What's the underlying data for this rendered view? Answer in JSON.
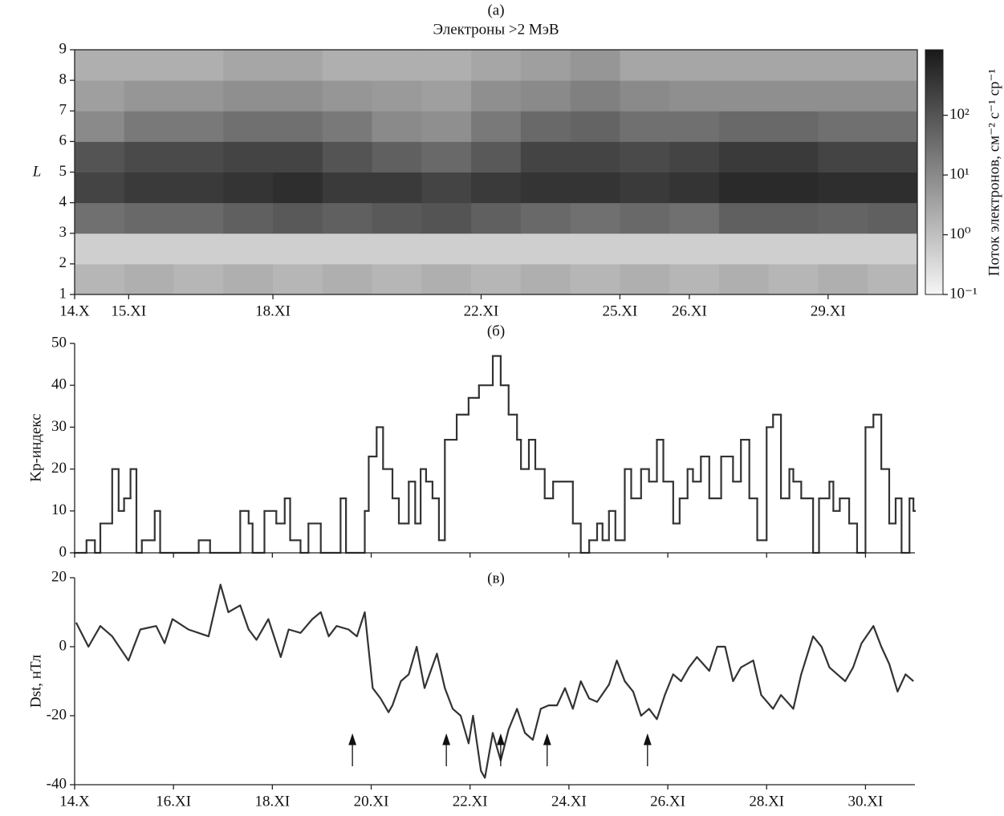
{
  "chart_data": [
    {
      "type": "heatmap",
      "label": "(а)",
      "title": "Электроны >2 МэВ",
      "ylabel": "L",
      "colorbar_label": "Поток электронов, см⁻² с⁻¹ ср⁻¹",
      "xlim": [
        14,
        31
      ],
      "ylim": [
        1,
        9
      ],
      "yticks": [
        1,
        2,
        3,
        4,
        5,
        6,
        7,
        8,
        9
      ],
      "xticks": [
        {
          "value": 14,
          "label": "14.X"
        },
        {
          "value": 15.09,
          "label": "15.XI"
        },
        {
          "value": 18.0,
          "label": "18.XI"
        },
        {
          "value": 22.2,
          "label": "22.XI"
        },
        {
          "value": 25.0,
          "label": "25.XI"
        },
        {
          "value": 26.4,
          "label": "26.XI"
        },
        {
          "value": 29.2,
          "label": "29.XI"
        }
      ],
      "log_scale": true,
      "colormap": "gray_r",
      "clim": [
        0.1,
        1250
      ],
      "cticks": [
        {
          "value": 0.1,
          "label": "10⁻¹"
        },
        {
          "value": 1,
          "label": "10⁰"
        },
        {
          "value": 10,
          "label": "10¹"
        },
        {
          "value": 100,
          "label": "10²"
        }
      ],
      "xbins": [
        14,
        15,
        16,
        17,
        18,
        19,
        20,
        21,
        22,
        23,
        24,
        25,
        26,
        27,
        28,
        29,
        30,
        31
      ],
      "ybins": [
        1,
        2,
        3,
        4,
        5,
        6,
        7,
        8,
        9
      ],
      "values": [
        [
          1.5,
          2,
          1.5,
          2,
          1.5,
          2,
          1.5,
          2,
          1.5,
          2,
          1.5,
          2,
          1.5,
          2,
          1.5,
          2,
          1.5
        ],
        [
          0.5,
          0.5,
          0.5,
          0.5,
          0.5,
          0.5,
          0.5,
          0.5,
          0.5,
          0.5,
          0.5,
          0.5,
          0.5,
          0.5,
          0.5,
          0.5,
          0.5
        ],
        [
          30,
          40,
          40,
          60,
          80,
          60,
          80,
          100,
          60,
          40,
          30,
          40,
          30,
          60,
          60,
          50,
          60
        ],
        [
          200,
          300,
          300,
          400,
          500,
          300,
          300,
          200,
          300,
          400,
          400,
          300,
          400,
          600,
          600,
          500,
          500
        ],
        [
          100,
          150,
          150,
          200,
          200,
          100,
          60,
          40,
          80,
          200,
          200,
          150,
          200,
          300,
          300,
          200,
          200
        ],
        [
          10,
          20,
          20,
          30,
          30,
          20,
          10,
          8,
          20,
          40,
          50,
          30,
          30,
          40,
          40,
          30,
          30
        ],
        [
          4,
          6,
          6,
          8,
          8,
          6,
          5,
          4,
          8,
          10,
          15,
          10,
          8,
          8,
          8,
          8,
          8
        ],
        [
          2,
          2,
          2,
          3,
          3,
          2,
          2,
          2,
          3,
          4,
          6,
          3,
          3,
          3,
          3,
          3,
          3
        ]
      ]
    },
    {
      "type": "step",
      "label": "(б)",
      "ylabel": "Kp-индекс",
      "color": "#333333",
      "xlim": [
        14,
        31
      ],
      "ylim": [
        0,
        50
      ],
      "yticks": [
        0,
        10,
        20,
        30,
        40,
        50
      ],
      "xticks": [
        14,
        16,
        18,
        20,
        22,
        24,
        26,
        28,
        30
      ],
      "x": [
        14.0,
        14.19,
        14.24,
        14.41,
        14.52,
        14.76,
        14.89,
        15.0,
        15.13,
        15.25,
        15.36,
        15.62,
        15.73,
        16.51,
        16.74,
        17.35,
        17.52,
        17.6,
        17.84,
        18.08,
        18.25,
        18.36,
        18.57,
        18.73,
        18.98,
        19.38,
        19.49,
        19.87,
        19.95,
        20.11,
        20.24,
        20.43,
        20.56,
        20.76,
        20.89,
        21.0,
        21.11,
        21.24,
        21.37,
        21.49,
        21.73,
        21.97,
        22.18,
        22.46,
        22.62,
        22.78,
        22.95,
        23.03,
        23.19,
        23.32,
        23.51,
        23.68,
        24.08,
        24.24,
        24.41,
        24.57,
        24.68,
        24.81,
        24.94,
        25.13,
        25.26,
        25.46,
        25.62,
        25.78,
        25.91,
        26.11,
        26.24,
        26.4,
        26.51,
        26.67,
        26.84,
        27.08,
        27.32,
        27.48,
        27.65,
        27.81,
        28.0,
        28.13,
        28.29,
        28.46,
        28.54,
        28.7,
        28.94,
        29.06,
        29.27,
        29.35,
        29.48,
        29.67,
        29.83,
        30.0,
        30.16,
        30.32,
        30.48,
        30.61,
        30.73,
        30.89,
        30.97
      ],
      "values": [
        0,
        0,
        3,
        0,
        7,
        20,
        10,
        13,
        20,
        0,
        3,
        10,
        0,
        3,
        0,
        10,
        7,
        0,
        10,
        7,
        13,
        3,
        0,
        7,
        0,
        13,
        0,
        10,
        23,
        30,
        20,
        13,
        7,
        17,
        7,
        20,
        17,
        13,
        3,
        27,
        33,
        37,
        40,
        47,
        40,
        33,
        27,
        20,
        27,
        20,
        13,
        17,
        7,
        0,
        3,
        7,
        3,
        10,
        3,
        20,
        13,
        20,
        17,
        27,
        17,
        7,
        13,
        20,
        17,
        23,
        13,
        23,
        17,
        27,
        13,
        3,
        30,
        33,
        13,
        20,
        17,
        13,
        0,
        13,
        17,
        10,
        13,
        7,
        0,
        30,
        33,
        20,
        7,
        13,
        0,
        13,
        10
      ]
    },
    {
      "type": "line",
      "label": "(в)",
      "ylabel": "Dst, нТл",
      "color": "#333333",
      "xlim": [
        14,
        31
      ],
      "ylim": [
        -40,
        20
      ],
      "yticks": [
        -40,
        -20,
        0,
        20
      ],
      "xticks": [
        {
          "value": 14,
          "label": "14.X"
        },
        {
          "value": 16,
          "label": "16.XI"
        },
        {
          "value": 18,
          "label": "18.XI"
        },
        {
          "value": 20,
          "label": "20.XI"
        },
        {
          "value": 22,
          "label": "22.XI"
        },
        {
          "value": 24,
          "label": "24.XI"
        },
        {
          "value": 26,
          "label": "26.XI"
        },
        {
          "value": 28,
          "label": "28.XI"
        },
        {
          "value": 30,
          "label": "30.XI"
        }
      ],
      "arrows": [
        19.62,
        21.52,
        22.62,
        23.56,
        25.59
      ],
      "x": [
        14.03,
        14.28,
        14.52,
        14.76,
        15.09,
        15.33,
        15.65,
        15.82,
        15.98,
        16.3,
        16.71,
        16.95,
        17.11,
        17.35,
        17.52,
        17.68,
        17.92,
        18.17,
        18.33,
        18.57,
        18.81,
        18.98,
        19.14,
        19.3,
        19.54,
        19.71,
        19.87,
        20.03,
        20.19,
        20.35,
        20.43,
        20.6,
        20.76,
        20.92,
        21.08,
        21.33,
        21.49,
        21.65,
        21.81,
        21.97,
        22.06,
        22.22,
        22.3,
        22.46,
        22.62,
        22.78,
        22.95,
        23.11,
        23.27,
        23.43,
        23.59,
        23.76,
        23.92,
        24.08,
        24.24,
        24.41,
        24.57,
        24.81,
        24.97,
        25.13,
        25.3,
        25.46,
        25.62,
        25.78,
        25.94,
        26.11,
        26.27,
        26.43,
        26.59,
        26.84,
        27.0,
        27.16,
        27.32,
        27.48,
        27.73,
        27.89,
        28.13,
        28.29,
        28.54,
        28.7,
        28.94,
        29.11,
        29.27,
        29.43,
        29.59,
        29.75,
        29.92,
        30.16,
        30.32,
        30.48,
        30.65,
        30.81,
        30.97
      ],
      "values": [
        7,
        0,
        6,
        3,
        -4,
        5,
        6,
        1,
        8,
        5,
        3,
        18,
        10,
        12,
        5,
        2,
        8,
        -3,
        5,
        4,
        8,
        10,
        3,
        6,
        5,
        3,
        10,
        -12,
        -15,
        -19,
        -17,
        -10,
        -8,
        0,
        -12,
        -2,
        -12,
        -18,
        -20,
        -28,
        -20,
        -36,
        -38,
        -25,
        -33,
        -24,
        -18,
        -25,
        -27,
        -18,
        -17,
        -17,
        -12,
        -18,
        -10,
        -15,
        -16,
        -11,
        -4,
        -10,
        -13,
        -20,
        -18,
        -21,
        -14,
        -8,
        -10,
        -6,
        -3,
        -7,
        0,
        0,
        -10,
        -6,
        -4,
        -14,
        -18,
        -14,
        -18,
        -8,
        3,
        0,
        -6,
        -8,
        -10,
        -6,
        1,
        6,
        0,
        -5,
        -13,
        -8,
        -10
      ]
    }
  ]
}
